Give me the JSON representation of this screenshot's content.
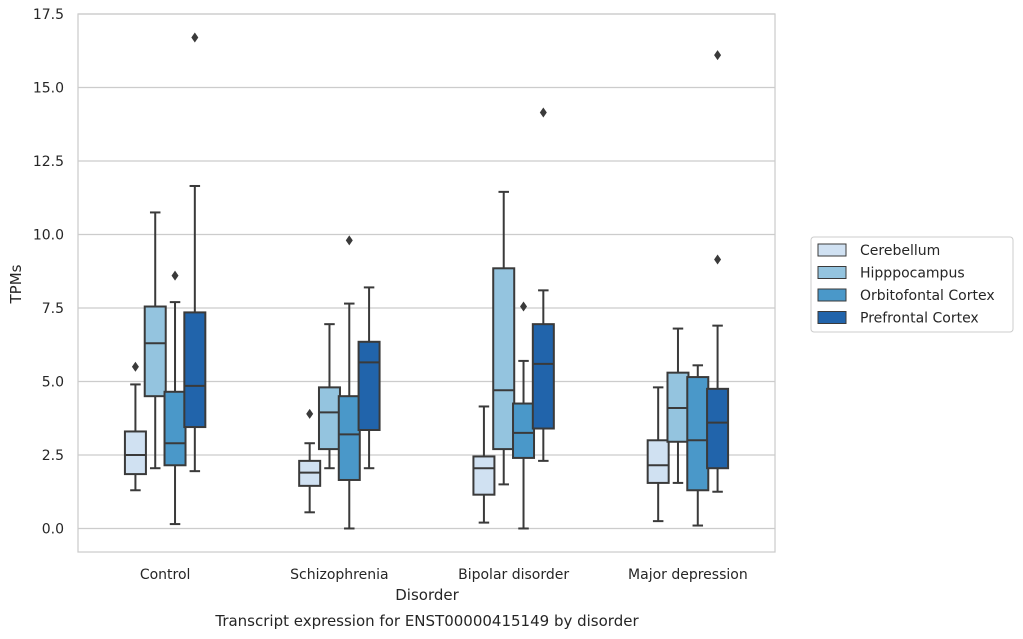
{
  "chart_data": {
    "type": "box",
    "xlabel": "Disorder",
    "ylabel": "TPMs",
    "caption": "Transcript expression for ENST00000415149 by disorder",
    "ylim": [
      -0.8,
      17.5
    ],
    "yticks": [
      "0.0",
      "2.5",
      "5.0",
      "7.5",
      "10.0",
      "12.5",
      "15.0",
      "17.5"
    ],
    "grid": "horizontal",
    "legend_position": "right",
    "categories": [
      "Control",
      "Schizophrenia",
      "Bipolar disorder",
      "Major depression"
    ],
    "series": [
      {
        "name": "Cerebellum",
        "color": "#d0e1f2",
        "boxes": [
          {
            "whislo": 1.3,
            "q1": 1.85,
            "med": 2.5,
            "q3": 3.3,
            "whishi": 4.9,
            "fliers": [
              5.5
            ]
          },
          {
            "whislo": 0.55,
            "q1": 1.45,
            "med": 1.9,
            "q3": 2.3,
            "whishi": 2.9,
            "fliers": [
              3.9
            ]
          },
          {
            "whislo": 0.2,
            "q1": 1.15,
            "med": 2.05,
            "q3": 2.45,
            "whishi": 4.15,
            "fliers": []
          },
          {
            "whislo": 0.25,
            "q1": 1.55,
            "med": 2.15,
            "q3": 3.0,
            "whishi": 4.8,
            "fliers": []
          }
        ]
      },
      {
        "name": "Hipppocampus",
        "color": "#94c4df",
        "boxes": [
          {
            "whislo": 2.05,
            "q1": 4.5,
            "med": 6.3,
            "q3": 7.55,
            "whishi": 10.75,
            "fliers": []
          },
          {
            "whislo": 2.05,
            "q1": 2.7,
            "med": 3.95,
            "q3": 4.8,
            "whishi": 6.95,
            "fliers": []
          },
          {
            "whislo": 1.5,
            "q1": 2.7,
            "med": 4.7,
            "q3": 8.85,
            "whishi": 11.45,
            "fliers": []
          },
          {
            "whislo": 1.55,
            "q1": 2.95,
            "med": 4.1,
            "q3": 5.3,
            "whishi": 6.8,
            "fliers": []
          }
        ]
      },
      {
        "name": "Orbitofontal Cortex",
        "color": "#4a98c9",
        "boxes": [
          {
            "whislo": 0.15,
            "q1": 2.15,
            "med": 2.9,
            "q3": 4.65,
            "whishi": 7.7,
            "fliers": [
              8.6
            ]
          },
          {
            "whislo": 0.0,
            "q1": 1.65,
            "med": 3.2,
            "q3": 4.5,
            "whishi": 7.65,
            "fliers": [
              9.8
            ]
          },
          {
            "whislo": 0.0,
            "q1": 2.4,
            "med": 3.25,
            "q3": 4.25,
            "whishi": 5.7,
            "fliers": [
              7.55
            ]
          },
          {
            "whislo": 0.1,
            "q1": 1.3,
            "med": 3.0,
            "q3": 5.15,
            "whishi": 5.55,
            "fliers": []
          }
        ]
      },
      {
        "name": "Prefrontal Cortex",
        "color": "#2164ab",
        "boxes": [
          {
            "whislo": 1.95,
            "q1": 3.45,
            "med": 4.85,
            "q3": 7.35,
            "whishi": 11.65,
            "fliers": [
              16.7
            ]
          },
          {
            "whislo": 2.05,
            "q1": 3.35,
            "med": 5.65,
            "q3": 6.35,
            "whishi": 8.2,
            "fliers": []
          },
          {
            "whislo": 2.3,
            "q1": 3.4,
            "med": 5.6,
            "q3": 6.95,
            "whishi": 8.1,
            "fliers": [
              14.15
            ]
          },
          {
            "whislo": 1.25,
            "q1": 2.05,
            "med": 3.6,
            "q3": 4.75,
            "whishi": 6.9,
            "fliers": [
              9.15,
              16.1
            ]
          }
        ]
      }
    ]
  }
}
